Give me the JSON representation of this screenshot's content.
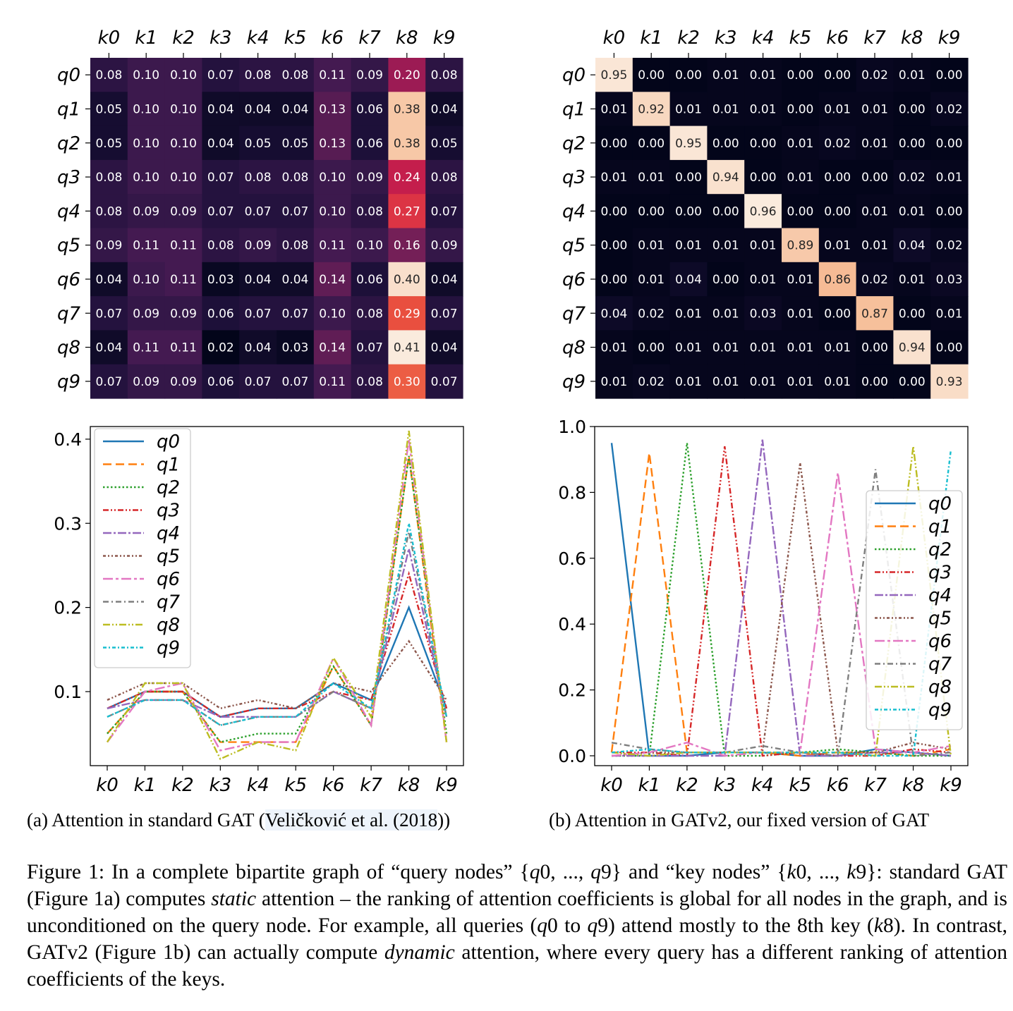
{
  "keys": [
    "k0",
    "k1",
    "k2",
    "k3",
    "k4",
    "k5",
    "k6",
    "k7",
    "k8",
    "k9"
  ],
  "queries": [
    "q0",
    "q1",
    "q2",
    "q3",
    "q4",
    "q5",
    "q6",
    "q7",
    "q8",
    "q9"
  ],
  "series_colors": [
    "#1f77b4",
    "#ff7f0e",
    "#2ca02c",
    "#d62728",
    "#9467bd",
    "#8c564b",
    "#e377c2",
    "#7f7f7f",
    "#bcbd22",
    "#17becf"
  ],
  "chart_data": [
    {
      "id": "a-heatmap",
      "type": "heatmap",
      "colormap": "rocket",
      "value_range": [
        0.02,
        0.41
      ],
      "x_ticks": [
        "k0",
        "k1",
        "k2",
        "k3",
        "k4",
        "k5",
        "k6",
        "k7",
        "k8",
        "k9"
      ],
      "y_ticks": [
        "q0",
        "q1",
        "q2",
        "q3",
        "q4",
        "q5",
        "q6",
        "q7",
        "q8",
        "q9"
      ],
      "values": [
        [
          0.08,
          0.1,
          0.1,
          0.07,
          0.08,
          0.08,
          0.11,
          0.09,
          0.2,
          0.08
        ],
        [
          0.05,
          0.1,
          0.1,
          0.04,
          0.04,
          0.04,
          0.13,
          0.06,
          0.38,
          0.04
        ],
        [
          0.05,
          0.1,
          0.1,
          0.04,
          0.05,
          0.05,
          0.13,
          0.06,
          0.38,
          0.05
        ],
        [
          0.08,
          0.1,
          0.1,
          0.07,
          0.08,
          0.08,
          0.1,
          0.09,
          0.24,
          0.08
        ],
        [
          0.08,
          0.09,
          0.09,
          0.07,
          0.07,
          0.07,
          0.1,
          0.08,
          0.27,
          0.07
        ],
        [
          0.09,
          0.11,
          0.11,
          0.08,
          0.09,
          0.08,
          0.11,
          0.1,
          0.16,
          0.09
        ],
        [
          0.04,
          0.1,
          0.11,
          0.03,
          0.04,
          0.04,
          0.14,
          0.06,
          0.4,
          0.04
        ],
        [
          0.07,
          0.09,
          0.09,
          0.06,
          0.07,
          0.07,
          0.1,
          0.08,
          0.29,
          0.07
        ],
        [
          0.04,
          0.11,
          0.11,
          0.02,
          0.04,
          0.03,
          0.14,
          0.07,
          0.41,
          0.04
        ],
        [
          0.07,
          0.09,
          0.09,
          0.06,
          0.07,
          0.07,
          0.11,
          0.08,
          0.3,
          0.07
        ]
      ]
    },
    {
      "id": "b-heatmap",
      "type": "heatmap",
      "colormap": "rocket",
      "value_range": [
        0.0,
        0.96
      ],
      "x_ticks": [
        "k0",
        "k1",
        "k2",
        "k3",
        "k4",
        "k5",
        "k6",
        "k7",
        "k8",
        "k9"
      ],
      "y_ticks": [
        "q0",
        "q1",
        "q2",
        "q3",
        "q4",
        "q5",
        "q6",
        "q7",
        "q8",
        "q9"
      ],
      "values": [
        [
          0.95,
          0.0,
          0.0,
          0.01,
          0.01,
          0.0,
          0.0,
          0.02,
          0.01,
          0.0
        ],
        [
          0.01,
          0.92,
          0.01,
          0.01,
          0.01,
          0.0,
          0.01,
          0.01,
          0.0,
          0.02
        ],
        [
          0.0,
          0.0,
          0.95,
          0.0,
          0.0,
          0.01,
          0.02,
          0.01,
          0.0,
          0.0
        ],
        [
          0.01,
          0.01,
          0.0,
          0.94,
          0.0,
          0.01,
          0.0,
          0.0,
          0.02,
          0.01
        ],
        [
          0.0,
          0.0,
          0.0,
          0.0,
          0.96,
          0.0,
          0.0,
          0.01,
          0.01,
          0.0
        ],
        [
          0.0,
          0.01,
          0.01,
          0.01,
          0.01,
          0.89,
          0.01,
          0.01,
          0.04,
          0.02
        ],
        [
          0.0,
          0.01,
          0.04,
          0.0,
          0.01,
          0.01,
          0.86,
          0.02,
          0.01,
          0.03
        ],
        [
          0.04,
          0.02,
          0.01,
          0.01,
          0.03,
          0.01,
          0.0,
          0.87,
          0.0,
          0.01
        ],
        [
          0.01,
          0.0,
          0.01,
          0.01,
          0.01,
          0.01,
          0.01,
          0.0,
          0.94,
          0.0
        ],
        [
          0.01,
          0.02,
          0.01,
          0.01,
          0.01,
          0.01,
          0.01,
          0.0,
          0.0,
          0.93
        ]
      ]
    },
    {
      "id": "a-lines",
      "type": "line",
      "x": [
        "k0",
        "k1",
        "k2",
        "k3",
        "k4",
        "k5",
        "k6",
        "k7",
        "k8",
        "k9"
      ],
      "ylim": [
        0.012,
        0.415
      ],
      "y_ticks": [
        0.1,
        0.2,
        0.3,
        0.4
      ],
      "legend": "top-left",
      "series_source": "a-heatmap"
    },
    {
      "id": "b-lines",
      "type": "line",
      "x": [
        "k0",
        "k1",
        "k2",
        "k3",
        "k4",
        "k5",
        "k6",
        "k7",
        "k8",
        "k9"
      ],
      "ylim": [
        -0.03,
        1.0
      ],
      "y_ticks": [
        0.0,
        0.2,
        0.4,
        0.6,
        0.8,
        1.0
      ],
      "legend": "center-right",
      "series_source": "b-heatmap"
    }
  ],
  "captions": {
    "a_prefix": "(a) Attention in standard GAT (",
    "a_cite": "Veličković et al. (",
    "a_year": "2018",
    "a_suffix": "))",
    "b": "(b) Attention in GATv2, our fixed version of GAT"
  },
  "figure_caption": {
    "p1": "Figure 1: In a complete bipartite graph of “query nodes” {",
    "m1": "q",
    "p2": "0, ..., ",
    "m2": "q",
    "p3": "9} and “key nodes” {",
    "m3": "k",
    "p4": "0, ..., ",
    "m4": "k",
    "p5": "9}: standard GAT (Figure 1a) computes ",
    "i1": "static",
    "p6": " attention – the ranking of attention coefficients is global for all nodes in the graph, and is unconditioned on the query node. For example, all queries (",
    "m5": "q",
    "p7": "0 to ",
    "m6": "q",
    "p8": "9) attend mostly to the 8th key (",
    "m7": "k",
    "p9": "8). In contrast, GATv2 (Figure 1b) can actually compute ",
    "i2": "dynamic",
    "p10": " attention, where every query has a different ranking of attention coefficients of the keys."
  }
}
